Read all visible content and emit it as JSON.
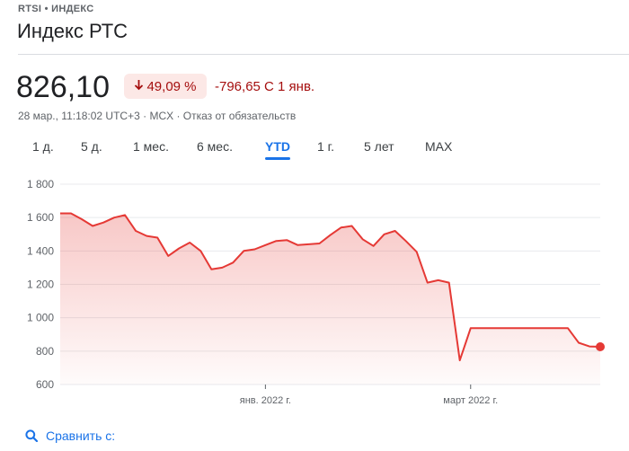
{
  "header": {
    "ticker": "RTSI • ИНДЕКС",
    "title": "Индекс РТС"
  },
  "quote": {
    "price": "826,10",
    "change_percent": "49,09 %",
    "change_abs": "-796,65 С 1 янв.",
    "meta": "28 мар., 11:18:02 UTC+3 · MCX · Отказ от обязательств",
    "colors": {
      "negative": "#a50e0e",
      "negative_bg": "#fce8e6",
      "line": "#e53935"
    }
  },
  "tabs": [
    {
      "label": "1 д.",
      "active": false
    },
    {
      "label": "5 д.",
      "active": false
    },
    {
      "label": "1 мес.",
      "active": false
    },
    {
      "label": "6 мес.",
      "active": false
    },
    {
      "label": "YTD",
      "active": true
    },
    {
      "label": "1 г.",
      "active": false
    },
    {
      "label": "5 лет",
      "active": false
    },
    {
      "label": "MAX",
      "active": false
    }
  ],
  "chart_data": {
    "type": "area",
    "title": "",
    "xlabel": "",
    "ylabel": "",
    "ylim": [
      600,
      1800
    ],
    "yticks": [
      "1 800",
      "1 600",
      "1 400",
      "1 200",
      "1 000",
      "800",
      "600"
    ],
    "ytick_values": [
      1800,
      1600,
      1400,
      1200,
      1000,
      800,
      600
    ],
    "xticks": [
      "янв. 2022 г.",
      "март 2022 г."
    ],
    "xtick_index": [
      19,
      38
    ],
    "grid": true,
    "series": [
      {
        "values": [
          1625,
          1625,
          1590,
          1550,
          1570,
          1600,
          1615,
          1520,
          1490,
          1480,
          1370,
          1415,
          1450,
          1400,
          1290,
          1300,
          1330,
          1400,
          1410,
          1435,
          1460,
          1465,
          1435,
          1440,
          1445,
          1495,
          1540,
          1550,
          1470,
          1430,
          1500,
          1520,
          1460,
          1395,
          1210,
          1225,
          1210,
          745,
          938,
          938,
          938,
          938,
          938,
          938,
          938,
          938,
          938,
          938,
          850,
          828,
          826
        ]
      }
    ]
  },
  "compare": {
    "label": "Сравнить с:",
    "icon": "search-icon"
  }
}
